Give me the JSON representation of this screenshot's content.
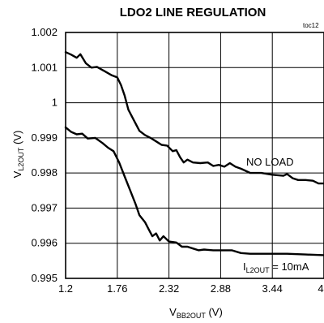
{
  "chart_data": {
    "type": "line",
    "title": "LDO2 LINE REGULATION",
    "figure_id": "toc12",
    "xlabel": {
      "main": "V",
      "sub": "BB2OUT",
      "unit": " (V)"
    },
    "ylabel": {
      "main": "V",
      "sub": "L2OUT",
      "unit": " (V)"
    },
    "xlim": [
      1.2,
      4.0
    ],
    "ylim": [
      0.995,
      1.002
    ],
    "xticks": [
      "1.2",
      "1.76",
      "2.32",
      "2.88",
      "3.44",
      "4"
    ],
    "xtick_values": [
      1.2,
      1.76,
      2.32,
      2.88,
      3.44,
      4.0
    ],
    "yticks": [
      "0.995",
      "0.996",
      "0.997",
      "0.998",
      "0.999",
      "1",
      "1.001",
      "1.002"
    ],
    "ytick_values": [
      0.995,
      0.996,
      0.997,
      0.998,
      0.999,
      1.0,
      1.001,
      1.002
    ],
    "grid": true,
    "series": [
      {
        "name": "NO LOAD",
        "label_text": "NO LOAD",
        "points": [
          [
            1.2,
            1.00144
          ],
          [
            1.26,
            1.00137
          ],
          [
            1.32,
            1.00128
          ],
          [
            1.36,
            1.00138
          ],
          [
            1.42,
            1.00112
          ],
          [
            1.48,
            1.001
          ],
          [
            1.54,
            1.00102
          ],
          [
            1.62,
            1.0009
          ],
          [
            1.7,
            1.00078
          ],
          [
            1.76,
            1.00072
          ],
          [
            1.8,
            1.0005
          ],
          [
            1.84,
            1.0002
          ],
          [
            1.88,
            0.9998
          ],
          [
            1.94,
            0.9995
          ],
          [
            2.0,
            0.9992
          ],
          [
            2.06,
            0.99908
          ],
          [
            2.12,
            0.999
          ],
          [
            2.18,
            0.9989
          ],
          [
            2.24,
            0.9988
          ],
          [
            2.3,
            0.99878
          ],
          [
            2.36,
            0.99862
          ],
          [
            2.4,
            0.99865
          ],
          [
            2.44,
            0.99845
          ],
          [
            2.48,
            0.9983
          ],
          [
            2.52,
            0.99838
          ],
          [
            2.58,
            0.9983
          ],
          [
            2.66,
            0.99828
          ],
          [
            2.74,
            0.9983
          ],
          [
            2.8,
            0.9982
          ],
          [
            2.86,
            0.99823
          ],
          [
            2.92,
            0.99818
          ],
          [
            2.98,
            0.99828
          ],
          [
            3.04,
            0.99818
          ],
          [
            3.1,
            0.99812
          ],
          [
            3.2,
            0.998
          ],
          [
            3.32,
            0.998
          ],
          [
            3.44,
            0.99795
          ],
          [
            3.56,
            0.99792
          ],
          [
            3.6,
            0.99797
          ],
          [
            3.66,
            0.99785
          ],
          [
            3.72,
            0.9978
          ],
          [
            3.8,
            0.9978
          ],
          [
            3.88,
            0.99778
          ],
          [
            3.94,
            0.9977
          ],
          [
            4.0,
            0.9977
          ]
        ]
      },
      {
        "name": "I_L2OUT = 10mA",
        "label_main": "I",
        "label_sub": "L2OUT",
        "label_rest": " = 10mA",
        "points": [
          [
            1.2,
            0.9993
          ],
          [
            1.26,
            0.99917
          ],
          [
            1.32,
            0.9991
          ],
          [
            1.38,
            0.99912
          ],
          [
            1.44,
            0.99898
          ],
          [
            1.52,
            0.999
          ],
          [
            1.6,
            0.99885
          ],
          [
            1.66,
            0.99872
          ],
          [
            1.72,
            0.99862
          ],
          [
            1.78,
            0.9983
          ],
          [
            1.84,
            0.9979
          ],
          [
            1.9,
            0.9975
          ],
          [
            1.96,
            0.9971
          ],
          [
            2.0,
            0.9968
          ],
          [
            2.06,
            0.9966
          ],
          [
            2.1,
            0.9964
          ],
          [
            2.14,
            0.9962
          ],
          [
            2.18,
            0.99628
          ],
          [
            2.22,
            0.99608
          ],
          [
            2.26,
            0.9962
          ],
          [
            2.32,
            0.99605
          ],
          [
            2.4,
            0.99602
          ],
          [
            2.46,
            0.9959
          ],
          [
            2.52,
            0.9959
          ],
          [
            2.58,
            0.99585
          ],
          [
            2.64,
            0.9958
          ],
          [
            2.7,
            0.99582
          ],
          [
            2.8,
            0.9958
          ],
          [
            2.88,
            0.9958
          ],
          [
            3.0,
            0.9958
          ],
          [
            3.1,
            0.99572
          ],
          [
            3.2,
            0.9957
          ],
          [
            3.44,
            0.9957
          ],
          [
            3.6,
            0.9957
          ],
          [
            3.8,
            0.99568
          ],
          [
            4.0,
            0.99566
          ]
        ]
      }
    ]
  }
}
